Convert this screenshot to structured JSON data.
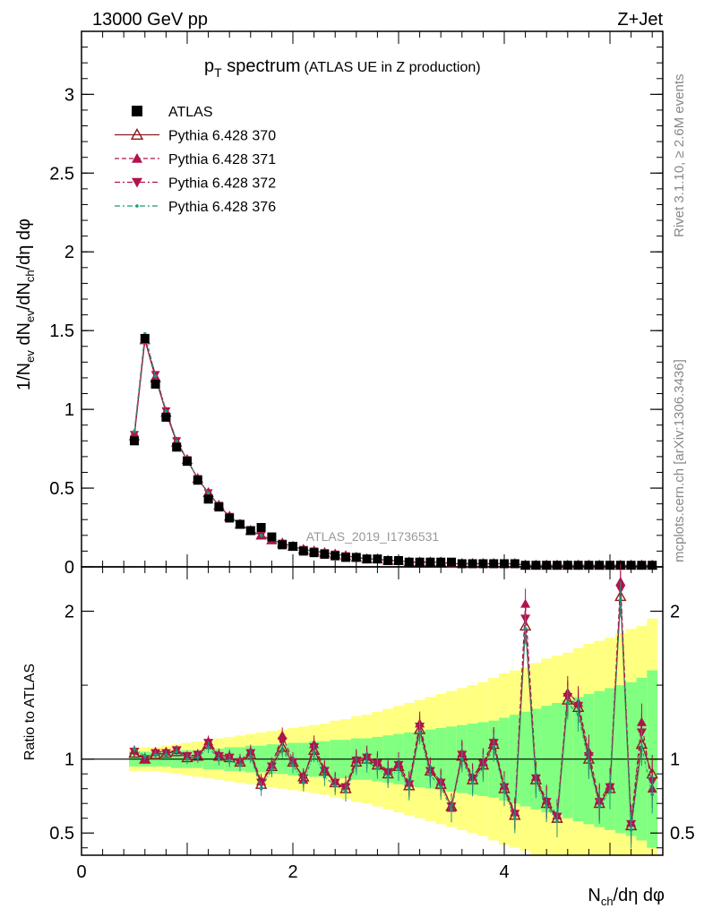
{
  "header": {
    "left": "13000 GeV pp",
    "right": "Z+Jet"
  },
  "title": {
    "main": "p",
    "sub": "T",
    "rest": " spectrum",
    "paren": "(ATLAS UE in Z production)"
  },
  "side_labels": {
    "rivet": "Rivet 3.1.10, ≥ 2.6M events",
    "mcplots": "mcplots.cern.ch [arXiv:1306.3436]"
  },
  "watermark": "ATLAS_2019_I1736531",
  "colors": {
    "atlas": "#000000",
    "p370": "#8b1a1a",
    "p371": "#b0124e",
    "p372": "#b0124e",
    "p376": "#1a9a7a",
    "band_inner": "#80ff80",
    "band_outer": "#ffff80"
  },
  "chart_data": [
    {
      "type": "scatter",
      "panel": "main",
      "ylabel": "1/N_ev dN_ev/dN_ch/dη dφ",
      "xlim": [
        0,
        5.5
      ],
      "ylim": [
        0,
        3.4
      ],
      "yticks": [
        "0",
        "0.5",
        "1",
        "1.5",
        "2",
        "2.5",
        "3"
      ],
      "legend": {
        "placement": "top-left",
        "entries": [
          {
            "label": "ATLAS",
            "marker": "square-filled",
            "color": "#000000"
          },
          {
            "label": "Pythia 6.428 370",
            "marker": "triangle-up-open",
            "color": "#8b1a1a",
            "line": "solid"
          },
          {
            "label": "Pythia 6.428 371",
            "marker": "triangle-up-filled",
            "color": "#b0124e",
            "line": "dashed"
          },
          {
            "label": "Pythia 6.428 372",
            "marker": "triangle-down-filled",
            "color": "#b0124e",
            "line": "dashdot"
          },
          {
            "label": "Pythia 6.428 376",
            "marker": "dot",
            "color": "#1a9a7a",
            "line": "dashdot"
          }
        ]
      },
      "x": [
        0.5,
        0.6,
        0.7,
        0.8,
        0.9,
        1.0,
        1.1,
        1.2,
        1.3,
        1.4,
        1.5,
        1.6,
        1.7,
        1.8,
        1.9,
        2.0,
        2.1,
        2.2,
        2.3,
        2.4,
        2.5,
        2.6,
        2.7,
        2.8,
        2.9,
        3.0,
        3.1,
        3.2,
        3.3,
        3.4,
        3.5,
        3.6,
        3.7,
        3.8,
        3.9,
        4.0,
        4.1,
        4.2,
        4.3,
        4.4,
        4.5,
        4.6,
        4.7,
        4.8,
        4.9,
        5.0,
        5.1,
        5.2,
        5.3,
        5.4
      ],
      "atlas": [
        0.8,
        1.45,
        1.16,
        0.95,
        0.76,
        0.67,
        0.55,
        0.43,
        0.38,
        0.31,
        0.27,
        0.23,
        0.25,
        0.19,
        0.14,
        0.13,
        0.1,
        0.09,
        0.08,
        0.07,
        0.06,
        0.06,
        0.05,
        0.05,
        0.04,
        0.04,
        0.03,
        0.03,
        0.03,
        0.03,
        0.03,
        0.02,
        0.02,
        0.02,
        0.02,
        0.02,
        0.02,
        0.01,
        0.01,
        0.01,
        0.01,
        0.01,
        0.01,
        0.01,
        0.01,
        0.01,
        0.01,
        0.01,
        0.01,
        0.01
      ],
      "series": [
        {
          "name": "Pythia 6.428 370",
          "values": [
            0.83,
            1.44,
            1.2,
            0.98,
            0.79,
            0.68,
            0.56,
            0.47,
            0.39,
            0.32,
            0.27,
            0.23,
            0.2,
            0.17,
            0.15,
            0.13,
            0.11,
            0.1,
            0.09,
            0.08,
            0.07,
            0.06,
            0.05,
            0.05,
            0.04,
            0.04,
            0.03,
            0.03,
            0.03,
            0.03,
            0.02,
            0.02,
            0.02,
            0.02,
            0.02,
            0.02,
            0.02,
            0.01,
            0.01,
            0.01,
            0.01,
            0.01,
            0.01,
            0.01,
            0.01,
            0.01,
            0.01,
            0.01,
            0.01,
            0.01
          ]
        },
        {
          "name": "Pythia 6.428 371",
          "values": [
            0.85,
            1.44,
            1.21,
            0.99,
            0.8,
            0.68,
            0.56,
            0.47,
            0.39,
            0.32,
            0.27,
            0.23,
            0.2,
            0.17,
            0.15,
            0.13,
            0.11,
            0.1,
            0.09,
            0.08,
            0.07,
            0.06,
            0.05,
            0.05,
            0.04,
            0.04,
            0.03,
            0.03,
            0.03,
            0.03,
            0.02,
            0.02,
            0.02,
            0.02,
            0.02,
            0.02,
            0.02,
            0.01,
            0.01,
            0.01,
            0.01,
            0.01,
            0.01,
            0.01,
            0.01,
            0.01,
            0.01,
            0.01,
            0.01,
            0.01
          ]
        },
        {
          "name": "Pythia 6.428 372",
          "values": [
            0.84,
            1.45,
            1.22,
            0.99,
            0.8,
            0.68,
            0.56,
            0.47,
            0.39,
            0.32,
            0.27,
            0.23,
            0.2,
            0.17,
            0.15,
            0.13,
            0.11,
            0.1,
            0.09,
            0.08,
            0.07,
            0.06,
            0.05,
            0.05,
            0.04,
            0.04,
            0.03,
            0.03,
            0.03,
            0.03,
            0.02,
            0.02,
            0.02,
            0.02,
            0.02,
            0.02,
            0.02,
            0.01,
            0.01,
            0.01,
            0.01,
            0.01,
            0.01,
            0.01,
            0.01,
            0.01,
            0.01,
            0.01,
            0.01,
            0.01
          ]
        },
        {
          "name": "Pythia 6.428 376",
          "values": [
            0.86,
            1.48,
            1.21,
            0.99,
            0.8,
            0.68,
            0.56,
            0.47,
            0.39,
            0.32,
            0.27,
            0.23,
            0.2,
            0.17,
            0.15,
            0.13,
            0.11,
            0.1,
            0.09,
            0.08,
            0.07,
            0.06,
            0.05,
            0.05,
            0.04,
            0.04,
            0.03,
            0.03,
            0.03,
            0.03,
            0.02,
            0.02,
            0.02,
            0.02,
            0.02,
            0.02,
            0.02,
            0.01,
            0.01,
            0.01,
            0.01,
            0.01,
            0.01,
            0.01,
            0.01,
            0.01,
            0.01,
            0.01,
            0.01,
            0.01
          ]
        }
      ]
    },
    {
      "type": "scatter",
      "panel": "ratio",
      "xlabel": "N_ch/dη dφ",
      "ylabel": "Ratio to ATLAS",
      "xlim": [
        0,
        5.5
      ],
      "ylim": [
        0.35,
        2.3
      ],
      "xticks": [
        "0",
        "2",
        "4"
      ],
      "yticks": [
        "0.5",
        "1",
        "2"
      ],
      "x": [
        0.5,
        0.6,
        0.7,
        0.8,
        0.9,
        1.0,
        1.1,
        1.2,
        1.3,
        1.4,
        1.5,
        1.6,
        1.7,
        1.8,
        1.9,
        2.0,
        2.1,
        2.2,
        2.3,
        2.4,
        2.5,
        2.6,
        2.7,
        2.8,
        2.9,
        3.0,
        3.1,
        3.2,
        3.3,
        3.4,
        3.5,
        3.6,
        3.7,
        3.8,
        3.9,
        4.0,
        4.1,
        4.2,
        4.3,
        4.4,
        4.5,
        4.6,
        4.7,
        4.8,
        4.9,
        5.0,
        5.1,
        5.2,
        5.3,
        5.4
      ],
      "band_inner": [
        0.05,
        0.05,
        0.05,
        0.05,
        0.06,
        0.06,
        0.06,
        0.07,
        0.07,
        0.08,
        0.08,
        0.09,
        0.09,
        0.1,
        0.1,
        0.11,
        0.11,
        0.12,
        0.12,
        0.13,
        0.13,
        0.14,
        0.14,
        0.15,
        0.16,
        0.17,
        0.18,
        0.19,
        0.2,
        0.21,
        0.22,
        0.23,
        0.24,
        0.25,
        0.26,
        0.28,
        0.3,
        0.32,
        0.34,
        0.36,
        0.38,
        0.4,
        0.42,
        0.44,
        0.46,
        0.48,
        0.5,
        0.52,
        0.55,
        0.6
      ],
      "band_outer": [
        0.08,
        0.08,
        0.08,
        0.09,
        0.1,
        0.11,
        0.12,
        0.13,
        0.14,
        0.15,
        0.16,
        0.17,
        0.18,
        0.19,
        0.2,
        0.21,
        0.22,
        0.23,
        0.24,
        0.26,
        0.27,
        0.29,
        0.3,
        0.32,
        0.34,
        0.36,
        0.38,
        0.4,
        0.42,
        0.44,
        0.46,
        0.48,
        0.5,
        0.52,
        0.55,
        0.58,
        0.6,
        0.62,
        0.65,
        0.68,
        0.7,
        0.72,
        0.75,
        0.78,
        0.8,
        0.82,
        0.85,
        0.88,
        0.9,
        0.95
      ],
      "series": [
        {
          "name": "Pythia 6.428 370",
          "values": [
            1.04,
            1.0,
            1.03,
            1.04,
            1.05,
            1.01,
            1.02,
            1.1,
            1.02,
            1.01,
            0.98,
            1.03,
            0.83,
            0.95,
            1.08,
            0.98,
            0.88,
            1.06,
            0.92,
            0.84,
            0.8,
            0.98,
            1.0,
            0.96,
            0.9,
            0.95,
            0.82,
            1.2,
            0.92,
            0.83,
            0.68,
            1.02,
            0.86,
            0.96,
            1.1,
            0.8,
            0.62,
            1.9,
            0.86,
            0.7,
            0.6,
            1.4,
            1.35,
            1.0,
            0.7,
            0.8,
            2.1,
            0.55,
            1.1,
            0.9
          ]
        },
        {
          "name": "Pythia 6.428 371",
          "values": [
            1.06,
            1.0,
            1.05,
            1.05,
            1.06,
            1.02,
            1.03,
            1.12,
            1.03,
            1.02,
            0.99,
            1.05,
            0.85,
            0.96,
            1.16,
            0.99,
            0.86,
            1.1,
            0.93,
            0.85,
            0.82,
            1.0,
            1.02,
            0.98,
            0.92,
            0.97,
            0.84,
            1.24,
            0.93,
            0.85,
            0.67,
            1.04,
            0.88,
            0.98,
            1.12,
            0.82,
            0.64,
            2.05,
            0.88,
            0.72,
            0.62,
            1.45,
            1.38,
            1.05,
            0.72,
            0.82,
            2.2,
            0.57,
            1.25,
            0.8
          ]
        },
        {
          "name": "Pythia 6.428 372",
          "values": [
            1.05,
            1.0,
            1.04,
            1.04,
            1.06,
            1.02,
            1.03,
            1.11,
            1.02,
            1.01,
            0.98,
            1.04,
            0.84,
            0.95,
            1.12,
            0.98,
            0.87,
            1.08,
            0.92,
            0.84,
            0.81,
            0.99,
            1.01,
            0.97,
            0.91,
            0.96,
            0.83,
            1.22,
            0.92,
            0.84,
            0.68,
            1.03,
            0.87,
            0.97,
            1.11,
            0.81,
            0.63,
            1.95,
            0.87,
            0.71,
            0.61,
            1.42,
            1.36,
            1.02,
            0.71,
            0.81,
            2.15,
            0.56,
            1.18,
            0.85
          ]
        },
        {
          "name": "Pythia 6.428 376",
          "values": [
            1.07,
            1.02,
            1.03,
            1.03,
            1.05,
            1.0,
            1.01,
            1.08,
            1.0,
            0.99,
            0.96,
            1.02,
            0.8,
            0.93,
            1.06,
            0.96,
            0.84,
            1.04,
            0.88,
            0.82,
            0.78,
            0.96,
            0.98,
            0.94,
            0.88,
            0.93,
            0.8,
            1.18,
            0.89,
            0.81,
            0.66,
            1.0,
            0.84,
            0.94,
            1.08,
            0.78,
            0.6,
            1.88,
            0.84,
            0.68,
            0.58,
            1.38,
            1.3,
            0.98,
            0.68,
            0.78,
            2.08,
            0.52,
            1.08,
            0.76
          ]
        }
      ]
    }
  ]
}
